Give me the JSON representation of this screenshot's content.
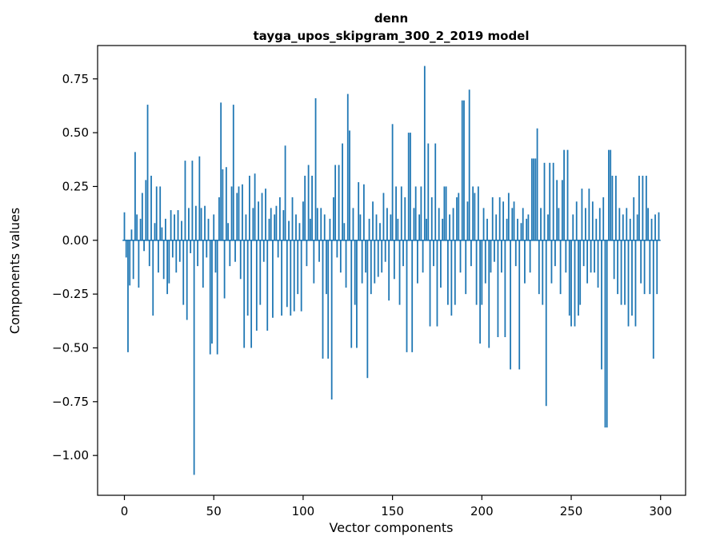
{
  "chart_data": {
    "type": "bar",
    "title": "denn",
    "subtitle": "tayga_upos_skipgram_300_2_2019 model",
    "xlabel": "Vector components",
    "ylabel": "Components values",
    "bar_color": "#1f77b4",
    "background_color": "#ffffff",
    "spine_color": "#000000",
    "grid": false,
    "legend": null,
    "xlim": [
      -15,
      314
    ],
    "ylim": [
      -1.185,
      0.905
    ],
    "x_ticks": [
      0,
      50,
      100,
      150,
      200,
      250,
      300
    ],
    "x_tick_labels": [
      "0",
      "50",
      "100",
      "150",
      "200",
      "250",
      "300"
    ],
    "y_ticks": [
      0.75,
      0.5,
      0.25,
      0.0,
      -0.25,
      -0.5,
      -0.75,
      -1.0
    ],
    "y_tick_labels": [
      "0.75",
      "0.50",
      "0.25",
      "0.00",
      "−0.25",
      "−0.50",
      "−0.75",
      "−1.00"
    ],
    "values": [
      0.13,
      -0.08,
      -0.52,
      -0.21,
      0.05,
      -0.18,
      0.41,
      0.12,
      -0.22,
      0.1,
      0.22,
      -0.05,
      0.28,
      0.63,
      -0.12,
      0.3,
      -0.35,
      0.08,
      0.25,
      -0.15,
      0.25,
      0.06,
      -0.18,
      0.1,
      -0.25,
      -0.2,
      0.14,
      -0.08,
      0.12,
      -0.15,
      0.14,
      -0.1,
      0.09,
      -0.3,
      0.37,
      -0.37,
      0.15,
      -0.06,
      0.37,
      -1.09,
      0.16,
      -0.12,
      0.39,
      0.15,
      -0.22,
      0.16,
      -0.08,
      0.1,
      -0.53,
      -0.48,
      0.12,
      -0.15,
      -0.53,
      0.2,
      0.64,
      0.33,
      -0.27,
      0.34,
      0.08,
      -0.12,
      0.25,
      0.63,
      -0.1,
      0.22,
      0.25,
      -0.18,
      0.26,
      -0.5,
      0.12,
      -0.35,
      0.3,
      -0.5,
      0.15,
      0.31,
      -0.42,
      0.18,
      -0.3,
      0.22,
      -0.1,
      0.24,
      -0.42,
      0.1,
      0.15,
      -0.36,
      0.12,
      0.16,
      -0.08,
      0.2,
      -0.35,
      0.14,
      0.44,
      -0.31,
      0.09,
      -0.35,
      0.2,
      -0.33,
      0.12,
      -0.25,
      0.08,
      -0.33,
      0.18,
      0.3,
      -0.12,
      0.35,
      0.1,
      0.3,
      -0.2,
      0.66,
      0.15,
      -0.1,
      0.15,
      -0.55,
      0.12,
      -0.25,
      -0.55,
      0.1,
      -0.74,
      0.2,
      0.35,
      -0.08,
      0.35,
      -0.15,
      0.45,
      0.08,
      -0.22,
      0.68,
      0.51,
      -0.5,
      0.15,
      -0.3,
      -0.5,
      0.27,
      0.12,
      -0.2,
      0.26,
      -0.15,
      -0.64,
      0.1,
      -0.25,
      0.18,
      -0.2,
      0.12,
      -0.17,
      0.08,
      -0.15,
      0.22,
      -0.1,
      0.15,
      -0.28,
      0.12,
      0.54,
      -0.18,
      0.25,
      0.1,
      -0.3,
      0.25,
      -0.12,
      0.2,
      -0.52,
      0.5,
      0.5,
      -0.52,
      0.15,
      0.25,
      -0.2,
      0.12,
      0.25,
      -0.15,
      0.81,
      0.1,
      0.45,
      -0.4,
      0.2,
      -0.12,
      0.45,
      -0.4,
      0.15,
      -0.22,
      0.1,
      0.25,
      0.25,
      -0.3,
      0.12,
      -0.35,
      0.15,
      -0.3,
      0.2,
      0.22,
      -0.15,
      0.65,
      0.65,
      -0.25,
      0.18,
      0.7,
      -0.12,
      0.25,
      0.22,
      -0.3,
      0.25,
      -0.48,
      -0.3,
      0.15,
      -0.2,
      0.1,
      -0.5,
      -0.15,
      0.2,
      -0.1,
      0.12,
      -0.45,
      0.2,
      -0.15,
      0.18,
      -0.45,
      0.1,
      0.22,
      -0.6,
      0.15,
      0.18,
      -0.12,
      0.1,
      -0.6,
      0.08,
      0.15,
      -0.2,
      0.1,
      0.12,
      -0.15,
      0.38,
      0.38,
      0.38,
      0.52,
      -0.25,
      0.15,
      -0.3,
      0.36,
      -0.77,
      0.12,
      0.36,
      -0.2,
      0.36,
      -0.12,
      0.28,
      0.15,
      -0.25,
      0.28,
      0.42,
      -0.15,
      0.42,
      -0.35,
      -0.4,
      0.12,
      -0.4,
      0.18,
      -0.35,
      -0.3,
      0.24,
      -0.12,
      0.15,
      -0.2,
      0.24,
      -0.15,
      0.18,
      -0.15,
      0.1,
      -0.22,
      0.15,
      -0.6,
      0.2,
      -0.87,
      -0.87,
      0.42,
      0.42,
      0.3,
      -0.18,
      0.3,
      -0.25,
      0.15,
      -0.3,
      0.12,
      -0.3,
      0.15,
      -0.4,
      0.1,
      -0.35,
      0.2,
      -0.4,
      0.12,
      0.3,
      -0.2,
      0.3,
      -0.25,
      0.3,
      0.15,
      -0.25,
      0.1,
      -0.55,
      0.12,
      -0.25,
      0.13
    ]
  }
}
